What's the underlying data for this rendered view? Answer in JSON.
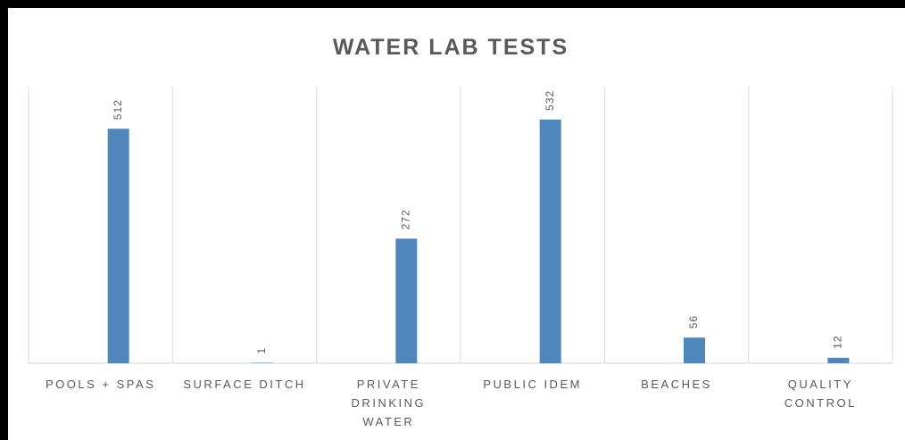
{
  "chart_data": {
    "type": "bar",
    "title": "WATER LAB TESTS",
    "categories": [
      "POOLS + SPAS",
      "SURFACE DITCH",
      "PRIVATE DRINKING WATER",
      "PUBLIC IDEM",
      "BEACHES",
      "QUALITY CONTROL"
    ],
    "values": [
      512,
      1,
      272,
      532,
      56,
      12
    ],
    "color": "#4f87bd",
    "ylim": [
      0,
      604
    ],
    "grid": false
  }
}
